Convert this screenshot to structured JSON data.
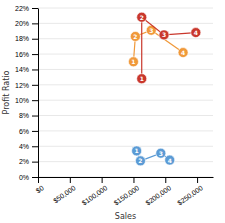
{
  "chart_data": {
    "type": "line",
    "marker": "circle",
    "grid": "y",
    "xlabel": "Sales",
    "ylabel": "Profit Ratio",
    "xlim": [
      0,
      275000
    ],
    "ylim": [
      0,
      0.22
    ],
    "xticks": [
      {
        "value": 0,
        "label": "$0"
      },
      {
        "value": 50000,
        "label": "$50,000"
      },
      {
        "value": 100000,
        "label": "$100,000"
      },
      {
        "value": 150000,
        "label": "$150,000"
      },
      {
        "value": 200000,
        "label": "$200,000"
      },
      {
        "value": 250000,
        "label": "$250,000"
      }
    ],
    "yticks": [
      {
        "value": 0,
        "label": "0%"
      },
      {
        "value": 0.02,
        "label": "2%"
      },
      {
        "value": 0.04,
        "label": "4%"
      },
      {
        "value": 0.06,
        "label": "6%"
      },
      {
        "value": 0.08,
        "label": "8%"
      },
      {
        "value": 0.1,
        "label": "10%"
      },
      {
        "value": 0.12,
        "label": "12%"
      },
      {
        "value": 0.14,
        "label": "14%"
      },
      {
        "value": 0.16,
        "label": "16%"
      },
      {
        "value": 0.18,
        "label": "18%"
      },
      {
        "value": 0.2,
        "label": "20%"
      },
      {
        "value": 0.22,
        "label": "22%"
      }
    ],
    "series": [
      {
        "color": "#F0993A",
        "x": [
          150000,
          153000,
          178000,
          228000
        ],
        "values": [
          0.15,
          0.183,
          0.191,
          0.162
        ],
        "labels": [
          "1",
          "2",
          "3",
          "4"
        ]
      },
      {
        "color": "#C9372C",
        "x": [
          163000,
          163000,
          198000,
          248000
        ],
        "values": [
          0.128,
          0.208,
          0.185,
          0.188
        ],
        "labels": [
          "1",
          "2",
          "3",
          "4"
        ]
      },
      {
        "color": "#5B9BD5",
        "x": [
          155000,
          161000,
          193000,
          207000
        ],
        "values": [
          0.034,
          0.021,
          0.031,
          0.022
        ],
        "labels": [
          "1",
          "2",
          "3",
          "4"
        ]
      }
    ]
  }
}
